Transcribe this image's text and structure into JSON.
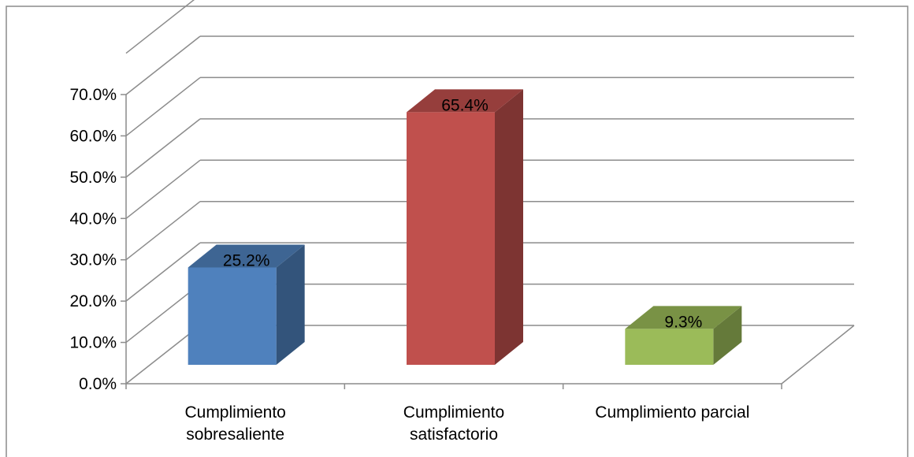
{
  "chart_data": {
    "type": "bar",
    "style": "3d-column",
    "categories": [
      [
        "Cumplimiento",
        "sobresaliente"
      ],
      [
        "Cumplimiento",
        "satisfactorio"
      ],
      [
        "Cumplimiento parcial"
      ]
    ],
    "values": [
      0.252,
      0.654,
      0.093
    ],
    "data_labels": [
      "25.2%",
      "65.4%",
      "9.3%"
    ],
    "colors": [
      "#4F81BD",
      "#C0504D",
      "#9BBB59"
    ],
    "ylim": [
      0,
      0.7
    ],
    "y_ticks": [
      {
        "value": 0.0,
        "label": "0.0%"
      },
      {
        "value": 0.1,
        "label": "10.0%"
      },
      {
        "value": 0.2,
        "label": "20.0%"
      },
      {
        "value": 0.3,
        "label": "30.0%"
      },
      {
        "value": 0.4,
        "label": "40.0%"
      },
      {
        "value": 0.5,
        "label": "50.0%"
      },
      {
        "value": 0.6,
        "label": "60.0%"
      },
      {
        "value": 0.7,
        "label": "70.0%"
      }
    ],
    "grid": true,
    "legend": "none",
    "title": "",
    "xlabel": "",
    "ylabel": ""
  }
}
